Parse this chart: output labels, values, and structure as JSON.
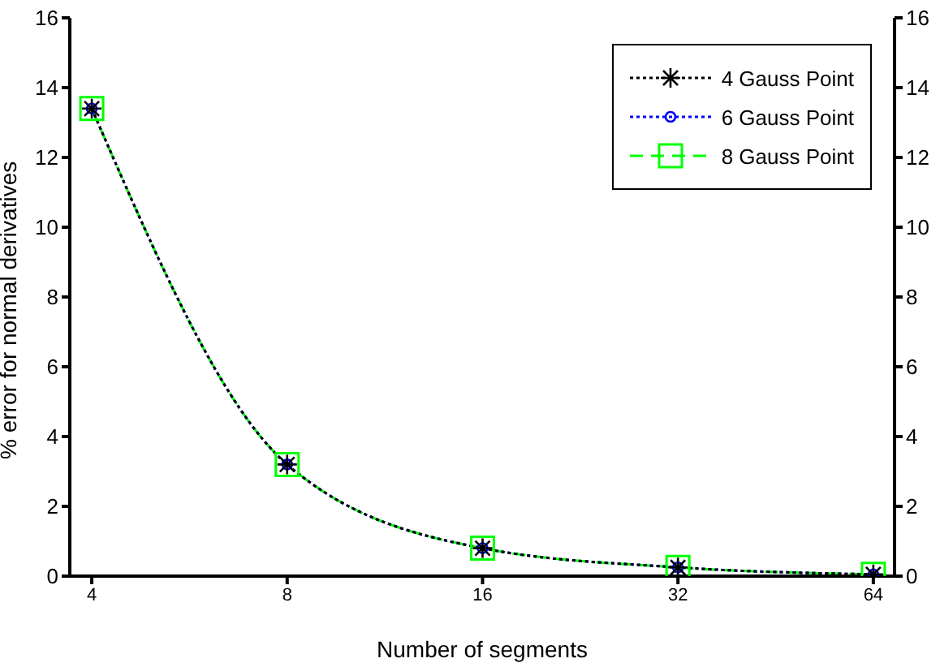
{
  "chart_data": {
    "type": "line",
    "xlabel": "Number of segments",
    "ylabel": "% error for normal derivatives",
    "log": "x",
    "x": [
      4,
      8,
      16,
      32,
      64
    ],
    "xlim": [
      3.7,
      69
    ],
    "xticks": [
      4,
      8,
      16,
      32,
      64
    ],
    "ylim": [
      0,
      16
    ],
    "yticks": [
      0,
      2,
      4,
      6,
      8,
      10,
      12,
      14,
      16
    ],
    "y2lim": [
      0,
      16
    ],
    "y2ticks": [
      0,
      2,
      4,
      6,
      8,
      10,
      12,
      14,
      16
    ],
    "grid": false,
    "legend": "top right",
    "series": [
      {
        "name": "4 Gauss Point",
        "color": "#000000",
        "marker": "cross",
        "line_style": "dotted",
        "values": [
          13.4,
          3.2,
          0.8,
          0.25,
          0.05
        ]
      },
      {
        "name": "6 Gauss Point",
        "color": "#0000ff",
        "marker": "circle",
        "line_style": "dotted",
        "values": [
          13.4,
          3.2,
          0.8,
          0.25,
          0.05
        ]
      },
      {
        "name": "8 Gauss Point",
        "color": "#00ff00",
        "marker": "square",
        "line_style": "dashed",
        "values": [
          13.4,
          3.2,
          0.8,
          0.25,
          0.05
        ]
      }
    ]
  }
}
